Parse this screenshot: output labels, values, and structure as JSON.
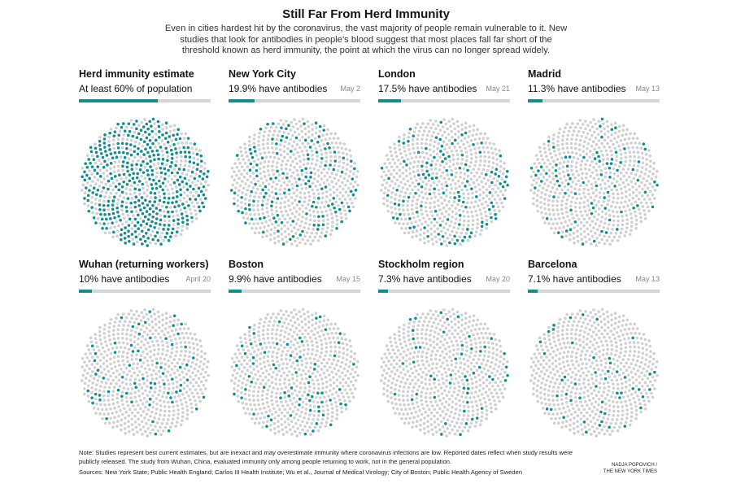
{
  "title": "Still Far From Herd Immunity",
  "subtitle": "Even in cities hardest hit by the coronavirus, the vast majority of people remain vulnerable to it. New studies that look for antibodies in people’s blood suggest that most places fall far short of the threshold known as herd immunity, the point at which the virus can no longer spread widely.",
  "colors": {
    "immune": "#138d90",
    "not_immune": "#d0d0d0",
    "bar_track": "#d5d5d5"
  },
  "chart_data": {
    "type": "dot-matrix",
    "panels": [
      {
        "title": "Herd immunity estimate",
        "label": "At least 60% of population",
        "date": "",
        "value": 60
      },
      {
        "title": "New York City",
        "label": "19.9% have antibodies",
        "date": "May 2",
        "value": 19.9
      },
      {
        "title": "London",
        "label": "17.5% have antibodies",
        "date": "May 21",
        "value": 17.5
      },
      {
        "title": "Madrid",
        "label": "11.3% have antibodies",
        "date": "May 13",
        "value": 11.3
      },
      {
        "title": "Wuhan (returning workers)",
        "label": "10% have antibodies",
        "date": "April 20",
        "value": 10
      },
      {
        "title": "Boston",
        "label": "9.9% have antibodies",
        "date": "May 15",
        "value": 9.9
      },
      {
        "title": "Stockholm region",
        "label": "7.3% have antibodies",
        "date": "May 20",
        "value": 7.3
      },
      {
        "title": "Barcelona",
        "label": "7.1% have antibodies",
        "date": "May 13",
        "value": 7.1
      }
    ]
  },
  "note": "Note: Studies represent best current estimates, but are inexact and may overestimate immunity where coronavirus infections are low. Reported dates reflect when study results were publicly released. The study from Wuhan, China, evaluated immunity only among people returning to work, not in the general population.",
  "sources": "Sources: New York State; Public Health England; Carlos III Health Institute; Wu et al., Journal of Medical Virology; City of Boston; Public Health Agency of Sweden",
  "credit": {
    "line1": "NADJA POPOVICH /",
    "line2": "THE NEW YORK TIMES"
  }
}
